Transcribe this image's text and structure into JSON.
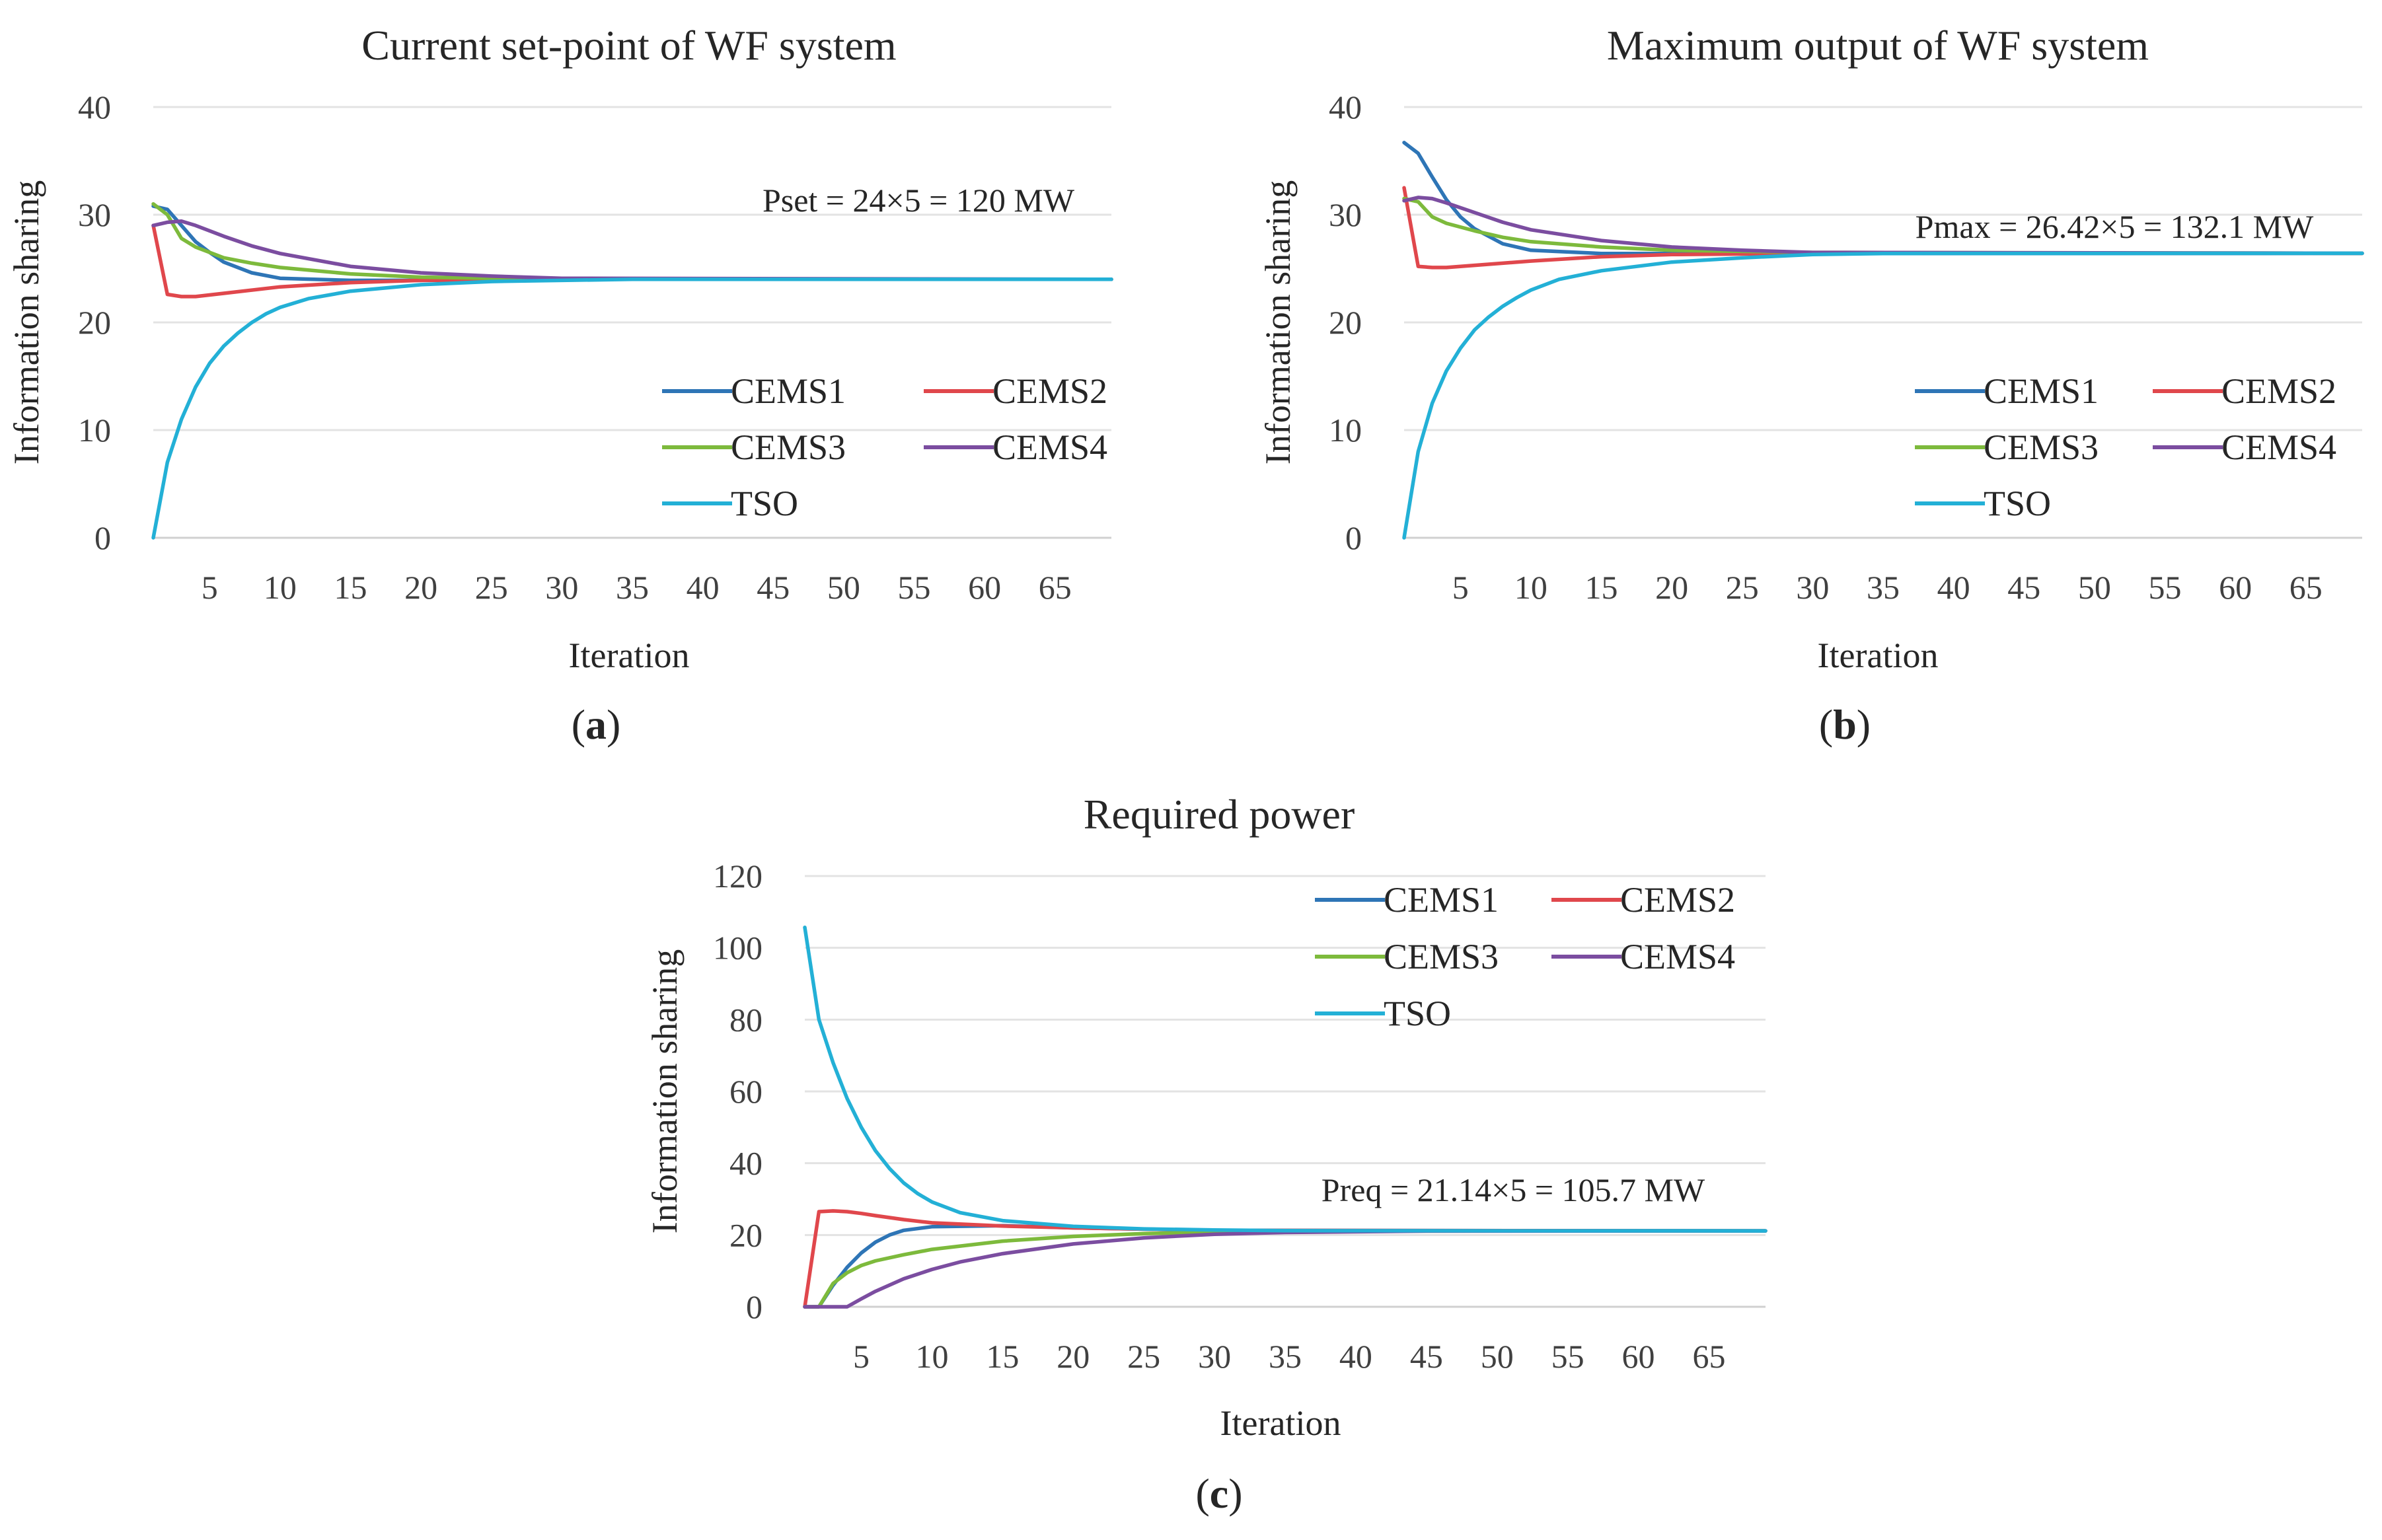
{
  "chart_data": [
    {
      "type": "line",
      "id": "a",
      "title": "Current set-point of WF system",
      "panel_label": "a",
      "xlabel": "Iteration",
      "ylabel": "Information sharing",
      "xlim": [
        1,
        69
      ],
      "ylim": [
        0,
        40
      ],
      "xticks": [
        5,
        10,
        15,
        20,
        25,
        30,
        35,
        40,
        45,
        50,
        55,
        60,
        65
      ],
      "yticks": [
        0,
        10,
        20,
        30,
        40
      ],
      "annotation": "Pset = 24×5 = 120 MW",
      "legend_position": "lower-right",
      "series": [
        {
          "name": "CEMS1",
          "color": "#2e75b6",
          "points": [
            [
              1,
              30.8
            ],
            [
              2,
              30.5
            ],
            [
              3,
              29
            ],
            [
              4,
              27.5
            ],
            [
              5,
              26.5
            ],
            [
              6,
              25.6
            ],
            [
              8,
              24.6
            ],
            [
              10,
              24.1
            ],
            [
              15,
              23.9
            ],
            [
              20,
              23.9
            ],
            [
              30,
              24
            ],
            [
              69,
              24
            ]
          ]
        },
        {
          "name": "CEMS2",
          "color": "#e0474c",
          "points": [
            [
              1,
              29
            ],
            [
              2,
              22.6
            ],
            [
              3,
              22.4
            ],
            [
              4,
              22.4
            ],
            [
              6,
              22.7
            ],
            [
              10,
              23.3
            ],
            [
              15,
              23.7
            ],
            [
              20,
              23.9
            ],
            [
              30,
              24
            ],
            [
              69,
              24
            ]
          ]
        },
        {
          "name": "CEMS3",
          "color": "#7dba3c",
          "points": [
            [
              1,
              31
            ],
            [
              2,
              30
            ],
            [
              3,
              27.8
            ],
            [
              4,
              27
            ],
            [
              6,
              26
            ],
            [
              8,
              25.5
            ],
            [
              10,
              25.1
            ],
            [
              15,
              24.5
            ],
            [
              20,
              24.2
            ],
            [
              30,
              24
            ],
            [
              69,
              24
            ]
          ]
        },
        {
          "name": "CEMS4",
          "color": "#7b4da0",
          "points": [
            [
              1,
              29
            ],
            [
              2,
              29.3
            ],
            [
              3,
              29.4
            ],
            [
              4,
              29
            ],
            [
              6,
              28
            ],
            [
              8,
              27.1
            ],
            [
              10,
              26.4
            ],
            [
              15,
              25.2
            ],
            [
              20,
              24.6
            ],
            [
              25,
              24.3
            ],
            [
              30,
              24.1
            ],
            [
              69,
              24
            ]
          ]
        },
        {
          "name": "TSO",
          "color": "#23b0d6",
          "points": [
            [
              1,
              0
            ],
            [
              2,
              7
            ],
            [
              3,
              11
            ],
            [
              4,
              14
            ],
            [
              5,
              16.2
            ],
            [
              6,
              17.8
            ],
            [
              7,
              19
            ],
            [
              8,
              20
            ],
            [
              9,
              20.8
            ],
            [
              10,
              21.4
            ],
            [
              12,
              22.2
            ],
            [
              15,
              22.9
            ],
            [
              20,
              23.5
            ],
            [
              25,
              23.8
            ],
            [
              30,
              23.9
            ],
            [
              35,
              24
            ],
            [
              69,
              24
            ]
          ]
        }
      ]
    },
    {
      "type": "line",
      "id": "b",
      "title": "Maximum output of WF system",
      "panel_label": "b",
      "xlabel": "Iteration",
      "ylabel": "Information sharing",
      "xlim": [
        1,
        69
      ],
      "ylim": [
        0,
        40
      ],
      "xticks": [
        5,
        10,
        15,
        20,
        25,
        30,
        35,
        40,
        45,
        50,
        55,
        60,
        65
      ],
      "yticks": [
        0,
        10,
        20,
        30,
        40
      ],
      "annotation": "Pmax = 26.42×5 = 132.1 MW",
      "legend_position": "lower-right",
      "series": [
        {
          "name": "CEMS1",
          "color": "#2e75b6",
          "points": [
            [
              1,
              36.7
            ],
            [
              2,
              35.7
            ],
            [
              3,
              33.5
            ],
            [
              4,
              31.4
            ],
            [
              5,
              29.8
            ],
            [
              6,
              28.7
            ],
            [
              8,
              27.3
            ],
            [
              10,
              26.7
            ],
            [
              15,
              26.4
            ],
            [
              20,
              26.4
            ],
            [
              69,
              26.42
            ]
          ]
        },
        {
          "name": "CEMS2",
          "color": "#e0474c",
          "points": [
            [
              1,
              32.5
            ],
            [
              2,
              25.2
            ],
            [
              3,
              25.1
            ],
            [
              4,
              25.1
            ],
            [
              6,
              25.3
            ],
            [
              10,
              25.7
            ],
            [
              15,
              26.1
            ],
            [
              20,
              26.3
            ],
            [
              30,
              26.42
            ],
            [
              69,
              26.42
            ]
          ]
        },
        {
          "name": "CEMS3",
          "color": "#7dba3c",
          "points": [
            [
              1,
              31.5
            ],
            [
              2,
              31.2
            ],
            [
              3,
              29.8
            ],
            [
              4,
              29.2
            ],
            [
              6,
              28.5
            ],
            [
              8,
              27.9
            ],
            [
              10,
              27.5
            ],
            [
              15,
              27
            ],
            [
              20,
              26.7
            ],
            [
              30,
              26.5
            ],
            [
              69,
              26.42
            ]
          ]
        },
        {
          "name": "CEMS4",
          "color": "#7b4da0",
          "points": [
            [
              1,
              31.3
            ],
            [
              2,
              31.6
            ],
            [
              3,
              31.5
            ],
            [
              4,
              31.1
            ],
            [
              6,
              30.2
            ],
            [
              8,
              29.3
            ],
            [
              10,
              28.6
            ],
            [
              15,
              27.6
            ],
            [
              20,
              27
            ],
            [
              25,
              26.7
            ],
            [
              30,
              26.5
            ],
            [
              69,
              26.42
            ]
          ]
        },
        {
          "name": "TSO",
          "color": "#23b0d6",
          "points": [
            [
              1,
              0
            ],
            [
              2,
              8
            ],
            [
              3,
              12.5
            ],
            [
              4,
              15.5
            ],
            [
              5,
              17.6
            ],
            [
              6,
              19.3
            ],
            [
              7,
              20.5
            ],
            [
              8,
              21.5
            ],
            [
              9,
              22.3
            ],
            [
              10,
              23
            ],
            [
              12,
              24
            ],
            [
              15,
              24.8
            ],
            [
              20,
              25.6
            ],
            [
              25,
              26
            ],
            [
              30,
              26.3
            ],
            [
              35,
              26.4
            ],
            [
              69,
              26.42
            ]
          ]
        }
      ]
    },
    {
      "type": "line",
      "id": "c",
      "title": "Required power",
      "panel_label": "c",
      "xlabel": "Iteration",
      "ylabel": "Information sharing",
      "xlim": [
        1,
        69
      ],
      "ylim": [
        0,
        120
      ],
      "xticks": [
        5,
        10,
        15,
        20,
        25,
        30,
        35,
        40,
        45,
        50,
        55,
        60,
        65
      ],
      "yticks": [
        0,
        20,
        40,
        60,
        80,
        100,
        120
      ],
      "annotation": "Preq = 21.14×5 = 105.7 MW",
      "legend_position": "upper-right",
      "series": [
        {
          "name": "CEMS1",
          "color": "#2e75b6",
          "points": [
            [
              1,
              0
            ],
            [
              2,
              0
            ],
            [
              3,
              6
            ],
            [
              4,
              11
            ],
            [
              5,
              15
            ],
            [
              6,
              18
            ],
            [
              7,
              20
            ],
            [
              8,
              21.3
            ],
            [
              10,
              22.3
            ],
            [
              15,
              22.6
            ],
            [
              20,
              22
            ],
            [
              30,
              21.3
            ],
            [
              69,
              21.14
            ]
          ]
        },
        {
          "name": "CEMS2",
          "color": "#e0474c",
          "points": [
            [
              1,
              0
            ],
            [
              2,
              26.5
            ],
            [
              3,
              26.7
            ],
            [
              4,
              26.5
            ],
            [
              5,
              26
            ],
            [
              6,
              25.4
            ],
            [
              8,
              24.3
            ],
            [
              10,
              23.4
            ],
            [
              15,
              22.5
            ],
            [
              20,
              22
            ],
            [
              30,
              21.3
            ],
            [
              69,
              21.14
            ]
          ]
        },
        {
          "name": "CEMS3",
          "color": "#7dba3c",
          "points": [
            [
              1,
              0
            ],
            [
              2,
              0
            ],
            [
              3,
              6.5
            ],
            [
              4,
              9.5
            ],
            [
              5,
              11.5
            ],
            [
              6,
              12.8
            ],
            [
              8,
              14.5
            ],
            [
              10,
              16
            ],
            [
              15,
              18.3
            ],
            [
              20,
              19.6
            ],
            [
              25,
              20.4
            ],
            [
              30,
              20.8
            ],
            [
              40,
              21.1
            ],
            [
              69,
              21.14
            ]
          ]
        },
        {
          "name": "CEMS4",
          "color": "#7b4da0",
          "points": [
            [
              1,
              0
            ],
            [
              2,
              0
            ],
            [
              3,
              0
            ],
            [
              4,
              0
            ],
            [
              5,
              2.2
            ],
            [
              6,
              4.3
            ],
            [
              8,
              7.8
            ],
            [
              10,
              10.4
            ],
            [
              12,
              12.5
            ],
            [
              15,
              14.8
            ],
            [
              20,
              17.5
            ],
            [
              25,
              19.2
            ],
            [
              30,
              20.2
            ],
            [
              35,
              20.7
            ],
            [
              45,
              21.1
            ],
            [
              69,
              21.14
            ]
          ]
        },
        {
          "name": "TSO",
          "color": "#23b0d6",
          "points": [
            [
              1,
              105.7
            ],
            [
              2,
              80
            ],
            [
              3,
              68
            ],
            [
              4,
              58
            ],
            [
              5,
              50
            ],
            [
              6,
              43.5
            ],
            [
              7,
              38.5
            ],
            [
              8,
              34.5
            ],
            [
              9,
              31.5
            ],
            [
              10,
              29.2
            ],
            [
              12,
              26.2
            ],
            [
              15,
              24
            ],
            [
              20,
              22.4
            ],
            [
              25,
              21.7
            ],
            [
              30,
              21.4
            ],
            [
              35,
              21.2
            ],
            [
              69,
              21.14
            ]
          ]
        }
      ]
    }
  ]
}
